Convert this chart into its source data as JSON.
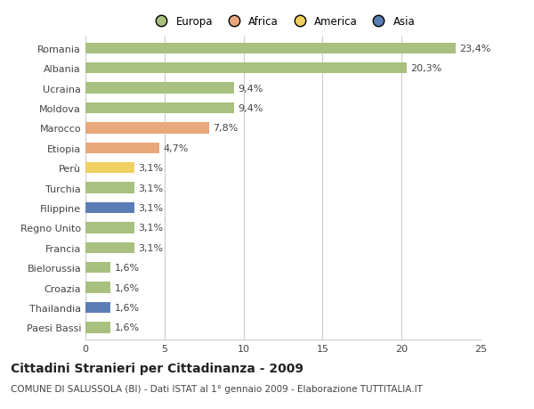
{
  "countries": [
    "Romania",
    "Albania",
    "Ucraina",
    "Moldova",
    "Marocco",
    "Etiopia",
    "Perù",
    "Turchia",
    "Filippine",
    "Regno Unito",
    "Francia",
    "Bielorussia",
    "Croazia",
    "Thailandia",
    "Paesi Bassi"
  ],
  "values": [
    23.4,
    20.3,
    9.4,
    9.4,
    7.8,
    4.7,
    3.1,
    3.1,
    3.1,
    3.1,
    3.1,
    1.6,
    1.6,
    1.6,
    1.6
  ],
  "labels": [
    "23,4%",
    "20,3%",
    "9,4%",
    "9,4%",
    "7,8%",
    "4,7%",
    "3,1%",
    "3,1%",
    "3,1%",
    "3,1%",
    "3,1%",
    "1,6%",
    "1,6%",
    "1,6%",
    "1,6%"
  ],
  "continents": [
    "Europa",
    "Europa",
    "Europa",
    "Europa",
    "Africa",
    "Africa",
    "America",
    "Europa",
    "Asia",
    "Europa",
    "Europa",
    "Europa",
    "Europa",
    "Asia",
    "Europa"
  ],
  "colors": {
    "Europa": "#a8c080",
    "Africa": "#e8a87c",
    "America": "#f0d060",
    "Asia": "#5b7db5"
  },
  "xlim": [
    0,
    25
  ],
  "xticks": [
    0,
    5,
    10,
    15,
    20,
    25
  ],
  "title": "Cittadini Stranieri per Cittadinanza - 2009",
  "subtitle": "COMUNE DI SALUSSOLA (BI) - Dati ISTAT al 1° gennaio 2009 - Elaborazione TUTTITALIA.IT",
  "background_color": "#ffffff",
  "bar_height": 0.55,
  "grid_color": "#cccccc",
  "text_color": "#444444",
  "label_fontsize": 8,
  "tick_fontsize": 8,
  "title_fontsize": 10,
  "subtitle_fontsize": 7.5,
  "legend_fontsize": 8.5
}
